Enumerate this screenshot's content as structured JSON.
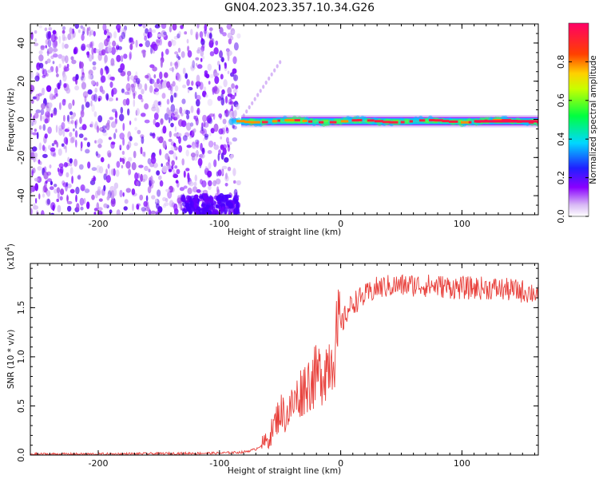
{
  "title": "GN04.2023.357.10.34.G26",
  "chart_data": [
    {
      "type": "heatmap",
      "xlabel": "Height of straight line (km)",
      "ylabel": "Frequency (Hz)",
      "xlim": [
        -256,
        163
      ],
      "ylim": [
        -50,
        50
      ],
      "x_ticks": [
        -200,
        -100,
        0,
        100
      ],
      "y_ticks": [
        -40,
        -20,
        0,
        20,
        40
      ],
      "colorbar": {
        "label": "Normalized spectral amplitude",
        "range": [
          0,
          1
        ],
        "ticks": [
          "0.0",
          "0.2",
          "0.4",
          "0.6",
          "0.8"
        ]
      },
      "features": {
        "noise_region_x": [
          -256,
          -84
        ],
        "signal_line_x": [
          -90,
          163
        ],
        "signal_line_frequency_hz": -1
      }
    },
    {
      "type": "line",
      "xlabel": "Height of straight line (km)",
      "ylabel": "SNR (10 * v/v)",
      "y_scale_label": "(x10",
      "y_scale_exponent": "4",
      "y_scale_suffix": ")",
      "xlim": [
        -256,
        163
      ],
      "ylim": [
        0,
        1.95
      ],
      "x_ticks": [
        -200,
        -100,
        0,
        100
      ],
      "y_ticks": [
        "0.0",
        "0.5",
        "1.0",
        "1.5"
      ],
      "color": "#e8413c",
      "series": [
        {
          "x": [
            -256,
            -200,
            -150,
            -100,
            -80,
            -70,
            -60,
            -55,
            -50,
            -45,
            -40,
            -35,
            -30,
            -25,
            -20,
            -15,
            -10,
            -5,
            0,
            5,
            10,
            20,
            30,
            40,
            60,
            80,
            100,
            120,
            140,
            163
          ],
          "y": [
            0.01,
            0.01,
            0.015,
            0.02,
            0.03,
            0.06,
            0.15,
            0.3,
            0.45,
            0.4,
            0.5,
            0.6,
            0.7,
            0.75,
            0.8,
            0.85,
            0.95,
            1.1,
            1.3,
            1.45,
            1.55,
            1.62,
            1.7,
            1.72,
            1.73,
            1.72,
            1.7,
            1.7,
            1.68,
            1.65
          ]
        }
      ]
    }
  ]
}
